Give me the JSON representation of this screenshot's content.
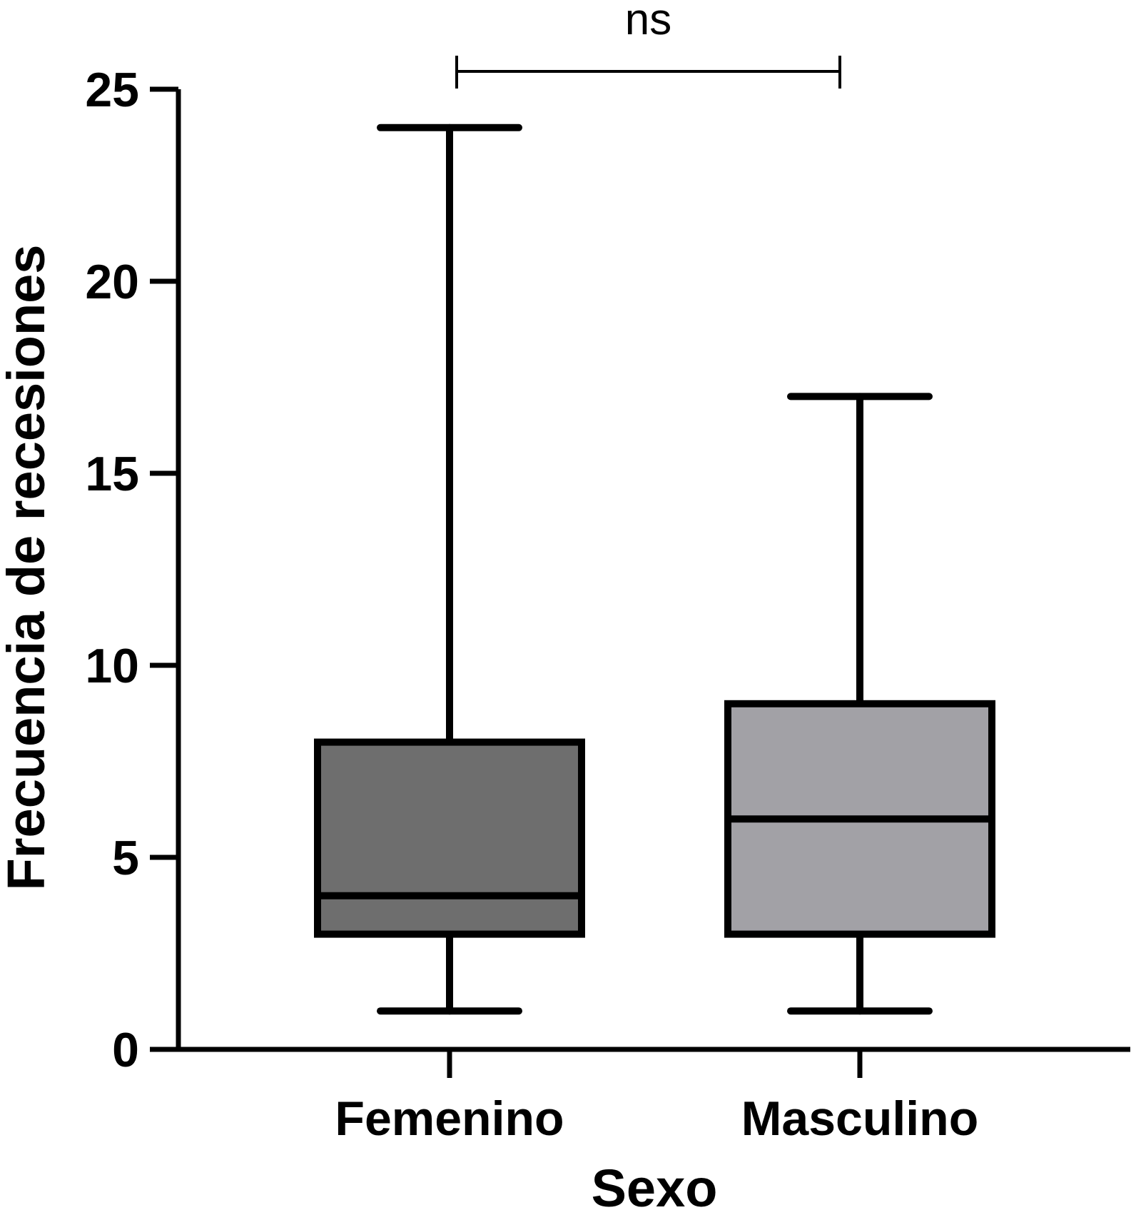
{
  "chart_data": {
    "type": "boxplot",
    "xlabel": "Sexo",
    "ylabel": "Frecuencia de recesiones",
    "ylim": [
      0,
      25
    ],
    "y_ticks": [
      0,
      5,
      10,
      15,
      20,
      25
    ],
    "y_tick_labels": [
      "0",
      "5",
      "10",
      "15",
      "20",
      "25"
    ],
    "categories": [
      "Femenino",
      "Masculino"
    ],
    "boxes": [
      {
        "category": "Femenino",
        "min": 1,
        "q1": 3,
        "median": 4,
        "q3": 8,
        "max": 24,
        "color": "#6e6e6e"
      },
      {
        "category": "Masculino",
        "min": 1,
        "q1": 3,
        "median": 6,
        "q3": 9,
        "max": 17,
        "color": "#a2a1a6"
      }
    ],
    "significance": {
      "label": "ns",
      "between": [
        "Femenino",
        "Masculino"
      ]
    },
    "grid": false,
    "legend": "none"
  }
}
